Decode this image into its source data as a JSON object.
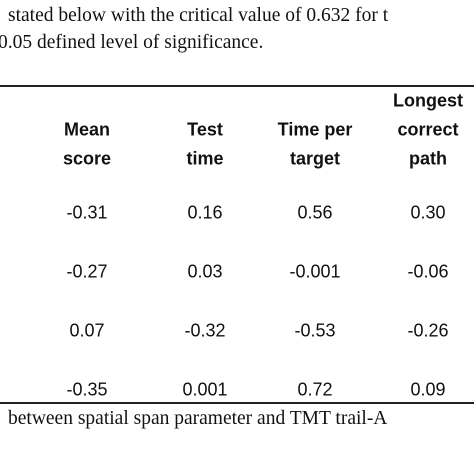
{
  "text": {
    "lines": [
      "stated below with the critical value of 0.632 for t",
      "0.05 defined level of significance."
    ]
  },
  "table": {
    "headers": [
      [
        "Mean",
        "score"
      ],
      [
        "Test",
        "time"
      ],
      [
        "Time per",
        "target"
      ],
      [
        "Longest",
        "correct",
        "path"
      ]
    ],
    "rows": [
      [
        "-0.31",
        "0.16",
        "0.56",
        "0.30"
      ],
      [
        "-0.27",
        "0.03",
        "-0.001",
        "-0.06"
      ],
      [
        "0.07",
        "-0.32",
        "-0.53",
        "-0.26"
      ],
      [
        "-0.35",
        "0.001",
        "0.72",
        "0.09"
      ]
    ]
  },
  "caption": "between spatial span parameter and TMT trail-A"
}
